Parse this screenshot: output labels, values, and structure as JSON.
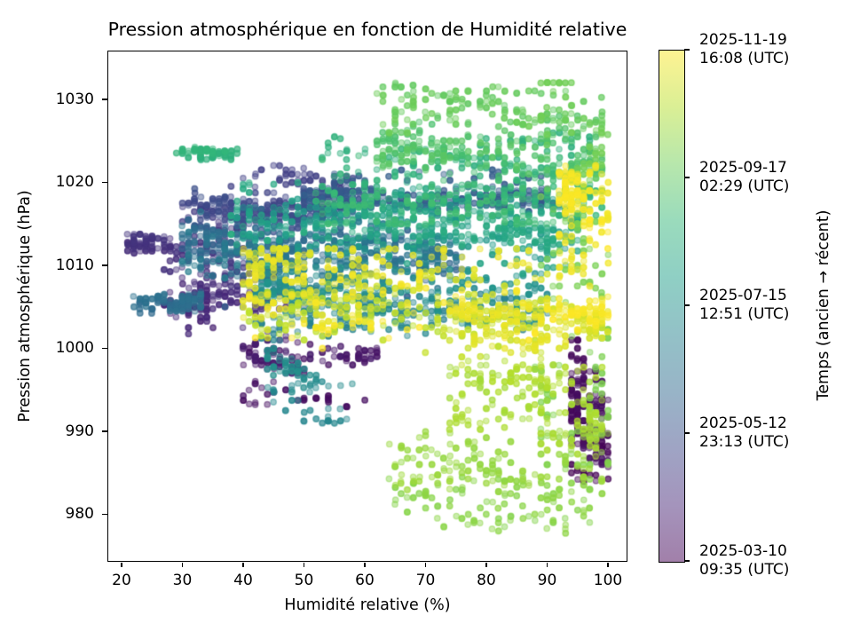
{
  "title": "Pression atmosphérique en fonction de Humidité relative",
  "axes": {
    "xlabel": "Humidité relative (%)",
    "ylabel": "Pression atmosphérique (hPa)",
    "x_ticks": [
      "20",
      "30",
      "40",
      "50",
      "60",
      "70",
      "80",
      "90",
      "100"
    ],
    "y_ticks": [
      "1030",
      "1020",
      "1010",
      "1000",
      "990",
      "980"
    ]
  },
  "colorbar": {
    "label": "Temps (ancien → récent)",
    "ticks": [
      {
        "line1": "2025-11-19",
        "line2": "16:08 (UTC)"
      },
      {
        "line1": "2025-09-17",
        "line2": "02:29 (UTC)"
      },
      {
        "line1": "2025-07-15",
        "line2": "12:51 (UTC)"
      },
      {
        "line1": "2025-05-12",
        "line2": "23:13 (UTC)"
      },
      {
        "line1": "2025-03-10",
        "line2": "09:35 (UTC)"
      }
    ]
  },
  "chart_data": {
    "type": "scatter",
    "title": "Pression atmosphérique en fonction de Humidité relative",
    "xlabel": "Humidité relative (%)",
    "ylabel": "Pression atmosphérique (hPa)",
    "xlim": [
      17.7,
      103.2
    ],
    "ylim": [
      974.3,
      1035.9
    ],
    "x_data_range": [
      21,
      100
    ],
    "y_data_range": [
      977,
      1033
    ],
    "color_dimension": "time",
    "time_start": "2025-03-10 09:35 (UTC)",
    "time_end": "2025-11-19 16:08 (UTC)",
    "colorbar_tick_times": [
      "2025-03-10 09:35",
      "2025-05-12 23:13",
      "2025-07-15 12:51",
      "2025-09-17 02:29",
      "2025-11-19 16:08"
    ],
    "colormap": "viridis",
    "colormap_stops": [
      "#440154",
      "#482878",
      "#3e4989",
      "#31688e",
      "#26828e",
      "#1f9e89",
      "#35b779",
      "#6ece58",
      "#b5de2b",
      "#fde725"
    ],
    "marker": {
      "radius": 3.2,
      "alpha": 0.45,
      "stroke": 1.4
    },
    "background": "#ffffff",
    "spine_color": "#000000",
    "generator": {
      "seed": 42,
      "rh_quantum": 1.0,
      "p_quantum": 0.25,
      "segments": [
        {
          "t": [
            0.0,
            0.05
          ],
          "rh": [
            94,
            100
          ],
          "p": [
            984,
            1001
          ],
          "n": 170
        },
        {
          "t": [
            0.03,
            0.09
          ],
          "rh": [
            40,
            62
          ],
          "p": [
            993,
            1001
          ],
          "n": 130
        },
        {
          "t": [
            0.09,
            0.17
          ],
          "rh": [
            27,
            47
          ],
          "p": [
            1001,
            1017
          ],
          "n": 230
        },
        {
          "t": [
            0.13,
            0.16
          ],
          "rh": [
            21,
            28
          ],
          "p": [
            1011.5,
            1014.5
          ],
          "n": 55
        },
        {
          "t": [
            0.17,
            0.25
          ],
          "rh": [
            30,
            58
          ],
          "p": [
            1013,
            1022
          ],
          "n": 280
        },
        {
          "t": [
            0.25,
            0.31
          ],
          "rh": [
            50,
            92
          ],
          "p": [
            1016,
            1021.5
          ],
          "n": 280
        },
        {
          "t": [
            0.31,
            0.43
          ],
          "rh": [
            30,
            76
          ],
          "p": [
            1005,
            1017
          ],
          "n": 520
        },
        {
          "t": [
            0.34,
            0.38
          ],
          "rh": [
            22,
            33
          ],
          "p": [
            1003.5,
            1008
          ],
          "n": 85
        },
        {
          "t": [
            0.43,
            0.52
          ],
          "rh": [
            42,
            90
          ],
          "p": [
            1001,
            1012
          ],
          "n": 420
        },
        {
          "t": [
            0.46,
            0.5
          ],
          "rh": [
            44,
            58
          ],
          "p": [
            991,
            1000
          ],
          "n": 70
        },
        {
          "t": [
            0.52,
            0.62
          ],
          "rh": [
            38,
            95
          ],
          "p": [
            1007,
            1020
          ],
          "n": 470
        },
        {
          "t": [
            0.62,
            0.7
          ],
          "rh": [
            52,
            100
          ],
          "p": [
            1015,
            1026
          ],
          "n": 380
        },
        {
          "t": [
            0.63,
            0.66
          ],
          "rh": [
            27,
            39
          ],
          "p": [
            1022.8,
            1024.6
          ],
          "n": 65
        },
        {
          "t": [
            0.7,
            0.78
          ],
          "rh": [
            62,
            100
          ],
          "p": [
            1021,
            1032.5
          ],
          "n": 330
        },
        {
          "t": [
            0.78,
            0.81
          ],
          "rh": [
            88,
            100
          ],
          "p": [
            1032,
            986
          ],
          "n": 150,
          "drift": true
        },
        {
          "t": [
            0.81,
            0.855
          ],
          "rh": [
            64,
            100
          ],
          "p": [
            977,
            990
          ],
          "n": 230
        },
        {
          "t": [
            0.855,
            0.89
          ],
          "rh": [
            74,
            99
          ],
          "p": [
            987,
            1002
          ],
          "n": 190
        },
        {
          "t": [
            0.89,
            1.0
          ],
          "rh": [
            40,
            90
          ],
          "p": [
            997,
            1012
          ],
          "n": 500
        },
        {
          "t": [
            0.93,
            1.0
          ],
          "rh": [
            74,
            100
          ],
          "p": [
            999,
            1008
          ],
          "n": 220
        },
        {
          "t": [
            0.97,
            1.0
          ],
          "rh": [
            92,
            100
          ],
          "p": [
            1004,
            1026
          ],
          "n": 130
        }
      ]
    }
  }
}
